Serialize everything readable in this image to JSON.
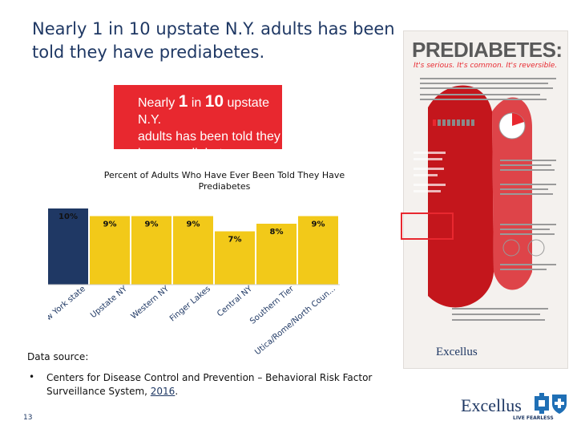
{
  "slide": {
    "title": "Nearly 1 in 10 upstate N.Y. adults has been told they have prediabetes.",
    "page_number": "13"
  },
  "callout": {
    "line1_prefix": "Nearly ",
    "line1_big1": "1",
    "line1_mid": " in ",
    "line1_big2": "10",
    "line1_suffix": " upstate N.Y.",
    "line2": "adults has been told they",
    "line3": "have prediabetes."
  },
  "chart_data": {
    "type": "bar",
    "title": "Percent of Adults Who Have Ever Been Told They Have Prediabetes",
    "categories": [
      "New York state",
      "Upstate NY",
      "Western NY",
      "Finger Lakes",
      "Central NY",
      "Southern Tier",
      "Utica/Rome/North Coun..."
    ],
    "values": [
      10,
      9,
      9,
      9,
      7,
      8,
      9
    ],
    "value_labels": [
      "10%",
      "9%",
      "9%",
      "9%",
      "7%",
      "8%",
      "9%"
    ],
    "colors": [
      "#1f3864",
      "#f2c919",
      "#f2c919",
      "#f2c919",
      "#f2c919",
      "#f2c919",
      "#f2c919"
    ],
    "ylim": [
      0,
      10
    ]
  },
  "source": {
    "label": "Data source:",
    "bullet": "•",
    "text": "Centers for Disease Control and Prevention – Behavioral Risk Factor Surveillance System, ",
    "year": "2016",
    "end": "."
  },
  "poster": {
    "title": "PREDIABETES:",
    "tagline": "It's serious. It's common. It's reversible.",
    "logo": "Excellus"
  },
  "logo": {
    "name": "Excellus",
    "tagline": "LIVE FEARLESS"
  },
  "colors": {
    "title": "#1f3864",
    "accent_red": "#e8282f",
    "bar_navy": "#1f3864",
    "bar_yellow": "#f2c919"
  }
}
